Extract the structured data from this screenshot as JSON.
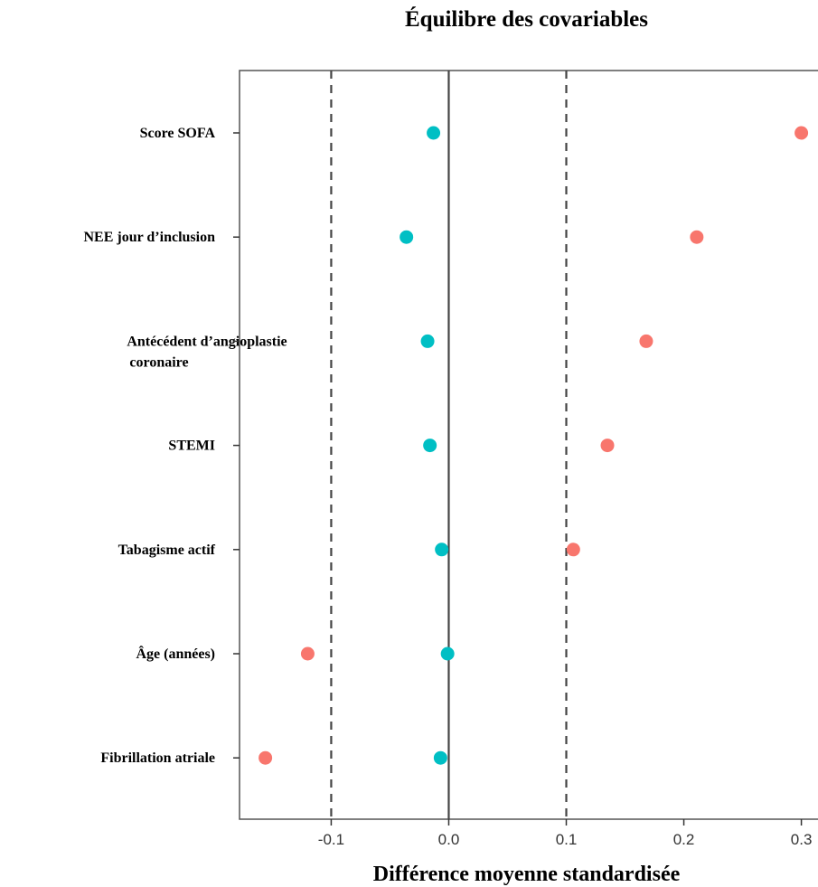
{
  "chart_data": {
    "type": "scatter",
    "title": "Équilibre des covariables",
    "xlabel": "Différence moyenne standardisée",
    "ylabel": "",
    "xlim": [
      -0.178,
      0.318
    ],
    "xticks": [
      -0.1,
      0.0,
      0.1,
      0.2,
      0.3
    ],
    "xtick_labels": [
      "-0.1",
      "0.0",
      "0.1",
      "0.2",
      "0.3"
    ],
    "reference_lines": {
      "solid": 0.0,
      "dashed": [
        -0.1,
        0.1
      ]
    },
    "grid": false,
    "categories": [
      [
        "Score SOFA"
      ],
      [
        "NEE jour d’inclusion"
      ],
      [
        "Antécédent d’angioplastie",
        "coronaire"
      ],
      [
        "STEMI"
      ],
      [
        "Tabagisme actif"
      ],
      [
        "Âge (années)"
      ],
      [
        "Fibrillation atriale"
      ]
    ],
    "series": [
      {
        "color": "#f8766d",
        "values": [
          0.3,
          0.211,
          0.168,
          0.135,
          0.106,
          -0.12,
          -0.156
        ]
      },
      {
        "color": "#00bfc4",
        "values": [
          -0.013,
          -0.036,
          -0.018,
          -0.016,
          -0.006,
          -0.001,
          -0.007
        ]
      }
    ]
  }
}
